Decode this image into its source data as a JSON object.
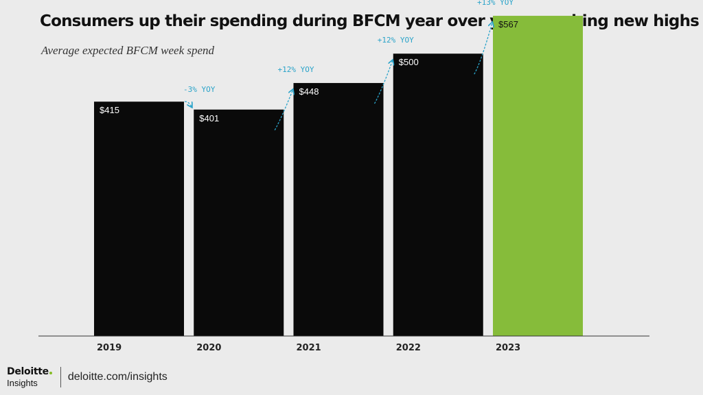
{
  "title": "Consumers up their spending during BFCM year over year, reaching new highs",
  "subtitle": "Average expected BFCM week spend",
  "chart_data": {
    "type": "bar",
    "categories": [
      "2019",
      "2020",
      "2021",
      "2022",
      "2023"
    ],
    "values": [
      415,
      401,
      448,
      500,
      567
    ],
    "value_labels": [
      "$415",
      "$401",
      "$448",
      "$500",
      "$567"
    ],
    "yoy_labels": [
      "",
      "-3% YOY",
      "+12% YOY",
      "+12% YOY",
      "+13% YOY"
    ],
    "bar_colors": [
      "#0a0a0a",
      "#0a0a0a",
      "#0a0a0a",
      "#0a0a0a",
      "#86bc3a"
    ],
    "annotation_color": "#2aa3c9",
    "ylim": [
      0,
      595
    ],
    "grid": false,
    "legend": "none"
  },
  "footer": {
    "logo_main": "Deloitte",
    "logo_sub": "Insights",
    "url": "deloitte.com/insights"
  }
}
